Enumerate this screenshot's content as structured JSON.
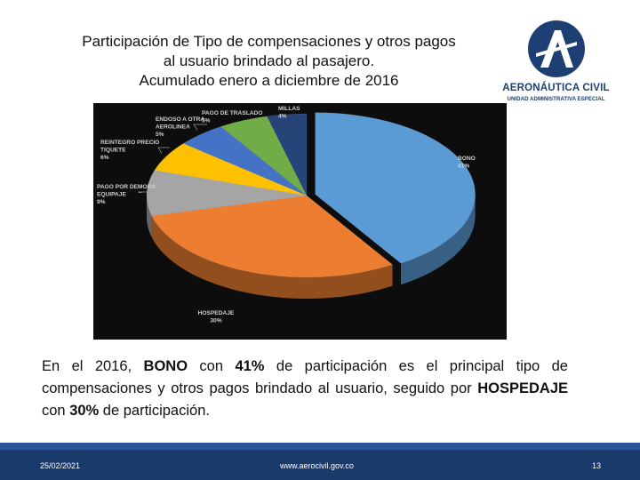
{
  "slide": {
    "title_lines": [
      "Participación de Tipo de compensaciones y otros pagos",
      "al usuario brindado al pasajero.",
      "Acumulado enero a diciembre de 2016"
    ],
    "logo": {
      "name": "AERONÁUTICA CIVIL",
      "subtitle": "UNIDAD ADMINISTRATIVA ESPECIAL",
      "icon": "aerocivil-a-logo-icon",
      "color": "#1e3f73"
    },
    "body": {
      "p1": "En el 2016, ",
      "b1": "BONO",
      "p2": " con ",
      "b2": "41%",
      "p3": " de participación es el principal tipo de compensaciones y otros pagos brindado al usuario, seguido por ",
      "b3": "HOSPEDAJE",
      "p4": " con ",
      "b4": "30%",
      "p5": " de participación."
    },
    "footer": {
      "date": "25/02/2021",
      "url": "www.aerocivil.gov.co",
      "page": "13"
    }
  },
  "chart_data": {
    "type": "pie",
    "title": "",
    "style": "3d-exploded-first-slice",
    "slices": [
      {
        "label": "BONO",
        "value": 41,
        "display": "41%",
        "color": "#5b9bd5"
      },
      {
        "label": "HOSPEDAJE",
        "value": 30,
        "display": "30%",
        "color": "#ed7d31"
      },
      {
        "label": "PAGO POR DEMORA EQUIPAJE",
        "value": 9,
        "display": "9%",
        "color": "#a5a5a5"
      },
      {
        "label": "REINTEGRO PRECIO TIQUETE",
        "value": 6,
        "display": "6%",
        "color": "#ffc000"
      },
      {
        "label": "ENDOSO A OTRA AEROLINEA",
        "value": 5,
        "display": "5%",
        "color": "#4472c4"
      },
      {
        "label": "PAGO DE TRASLADO",
        "value": 5,
        "display": "5%",
        "color": "#70ad47"
      },
      {
        "label": "MILLAS",
        "value": 4,
        "display": "4%",
        "color": "#264478"
      }
    ],
    "label_lines": {
      "BONO": [
        "BONO",
        "41%"
      ],
      "HOSPEDAJE": [
        "HOSPEDAJE",
        "30%"
      ],
      "PAGO POR DEMORA EQUIPAJE": [
        "PAGO POR DEMORA",
        "EQUIPAJE",
        "9%"
      ],
      "REINTEGRO PRECIO TIQUETE": [
        "REINTEGRO PRECIO",
        "TIQUETE",
        "6%"
      ],
      "ENDOSO A OTRA AEROLINEA": [
        "ENDOSO A OTRA",
        "AEROLINEA",
        "5%"
      ],
      "PAGO DE TRASLADO": [
        "PAGO DE TRASLADO",
        "5%"
      ],
      "MILLAS": [
        "MILLAS",
        "4%"
      ]
    },
    "legend": "none",
    "background": "#0d0d0d"
  }
}
